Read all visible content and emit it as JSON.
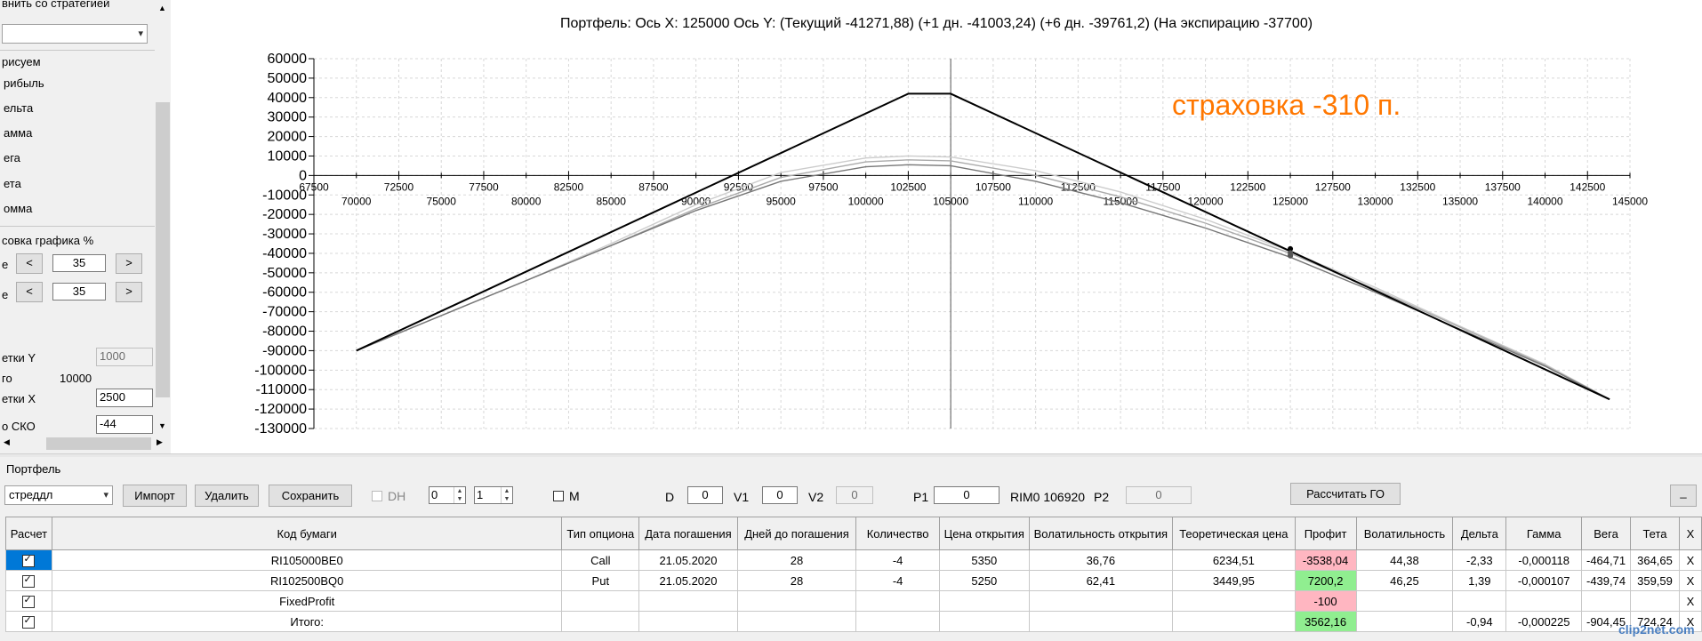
{
  "left_panel": {
    "compare_label": "внить со стратегией",
    "draw_header": "рисуем",
    "draw_items": [
      "рибыль",
      "ельта",
      "амма",
      "ега",
      "ета",
      "омма"
    ],
    "scale_header": "совка графика %",
    "scale_row1": {
      "label": "е",
      "prev": "<",
      "value": "35",
      "next": ">"
    },
    "scale_row2": {
      "label": "е",
      "prev": "<",
      "value": "35",
      "next": ">"
    },
    "gridY_label": "етки Y",
    "gridY_value": "1000",
    "total_label": "го",
    "total_value": "10000",
    "gridX_label": "етки X",
    "gridX_value": "2500",
    "sko_label": "о СКО",
    "sko_value": "-44"
  },
  "chart": {
    "title": "Портфель: Ось X: 125000 Ось Y:  (Текущий -41271,88)  (+1 дн. -41003,24)  (+6 дн. -39761,2)  (На экспирацию -37700)",
    "note": "страховка -310 п.",
    "note_color": "#ff7700"
  },
  "chart_data": {
    "type": "line",
    "title": "Портфель: Ось X: 125000 Ось Y:  (Текущий -41271,88)  (+1 дн. -41003,24)  (+6 дн. -39761,2)  (На экспирацию -37700)",
    "xlim": [
      67500,
      145000
    ],
    "ylim": [
      -130000,
      60000
    ],
    "x_ticks_upper": [
      "67500",
      "72500",
      "77500",
      "82500",
      "87500",
      "92500",
      "97500",
      "102500",
      "107500",
      "112500",
      "117500",
      "122500",
      "127500",
      "132500",
      "137500",
      "142500"
    ],
    "x_ticks_lower": [
      "70000",
      "75000",
      "80000",
      "85000",
      "90000",
      "95000",
      "100000",
      "105000",
      "110000",
      "115000",
      "120000",
      "125000",
      "130000",
      "135000",
      "140000",
      "145000"
    ],
    "y_ticks": [
      "60000",
      "50000",
      "40000",
      "30000",
      "20000",
      "10000",
      "0",
      "-10000",
      "-20000",
      "-30000",
      "-40000",
      "-50000",
      "-60000",
      "-70000",
      "-80000",
      "-90000",
      "-100000",
      "-110000",
      "-120000",
      "-130000"
    ],
    "cursor_x": 105000,
    "series": [
      {
        "color": "#000000",
        "points": [
          [
            70000,
            -90000
          ],
          [
            102500,
            42000
          ],
          [
            105000,
            42000
          ],
          [
            143800,
            -115000
          ]
        ]
      },
      {
        "color": "#777777",
        "points": [
          [
            70000,
            -90000
          ],
          [
            75000,
            -72000
          ],
          [
            80000,
            -54000
          ],
          [
            85000,
            -36000
          ],
          [
            90000,
            -18000
          ],
          [
            95000,
            -3000
          ],
          [
            100000,
            4500
          ],
          [
            102500,
            5500
          ],
          [
            105000,
            5000
          ],
          [
            110000,
            -3000
          ],
          [
            115000,
            -14000
          ],
          [
            120000,
            -27000
          ],
          [
            125000,
            -42000
          ],
          [
            130000,
            -60000
          ],
          [
            135000,
            -79000
          ],
          [
            140000,
            -98000
          ],
          [
            143800,
            -115000
          ]
        ]
      },
      {
        "color": "#aaaaaa",
        "points": [
          [
            70000,
            -90000
          ],
          [
            75000,
            -72000
          ],
          [
            80000,
            -54000
          ],
          [
            85000,
            -36000
          ],
          [
            90000,
            -17000
          ],
          [
            95000,
            -1000
          ],
          [
            100000,
            7000
          ],
          [
            102500,
            8000
          ],
          [
            105000,
            7500
          ],
          [
            110000,
            0
          ],
          [
            115000,
            -11000
          ],
          [
            120000,
            -24500
          ],
          [
            125000,
            -40000
          ],
          [
            130000,
            -58500
          ],
          [
            135000,
            -78000
          ],
          [
            140000,
            -97500
          ],
          [
            143800,
            -115000
          ]
        ]
      },
      {
        "color": "#cccccc",
        "points": [
          [
            70000,
            -90000
          ],
          [
            75000,
            -72000
          ],
          [
            80000,
            -54000
          ],
          [
            85000,
            -35000
          ],
          [
            90000,
            -15000
          ],
          [
            95000,
            1500
          ],
          [
            100000,
            9000
          ],
          [
            102500,
            10000
          ],
          [
            105000,
            9500
          ],
          [
            110000,
            2500
          ],
          [
            115000,
            -8500
          ],
          [
            120000,
            -22500
          ],
          [
            125000,
            -39000
          ],
          [
            130000,
            -57500
          ],
          [
            135000,
            -77500
          ],
          [
            140000,
            -97000
          ],
          [
            143800,
            -115000
          ]
        ]
      }
    ],
    "markers": [
      [
        125000,
        -37700
      ],
      [
        125000,
        -39761.2
      ],
      [
        125000,
        -41003.24
      ],
      [
        125000,
        -41271.88
      ]
    ],
    "grid": true
  },
  "bottom": {
    "portfolio_label": "Портфель",
    "strategy_value": "стреддл",
    "import_btn": "Импорт",
    "delete_btn": "Удалить",
    "save_btn": "Сохранить",
    "dh_label": "DH",
    "spin1_value": "0",
    "spin2_value": "1",
    "m_label": "M",
    "d_label": "D",
    "d_value": "0",
    "v1_label": "V1",
    "v1_value": "0",
    "v2_label": "V2",
    "v2_value": "0",
    "p1_label": "P1",
    "p1_value": "0",
    "rim_label": "RIM0 106920",
    "p2_label": "P2",
    "p2_value": "0",
    "calc_btn": "Рассчитать ГО",
    "minimize_btn": "_"
  },
  "grid": {
    "headers": [
      "Расчет",
      "Код бумаги",
      "Тип опциона",
      "Дата погашения",
      "Дней до погашения",
      "Количество",
      "Цена открытия",
      "Волатильность открытия",
      "Теоретическая цена",
      "Профит",
      "Волатильность",
      "Дельта",
      "Гамма",
      "Вега",
      "Тета",
      "X"
    ],
    "rows": [
      {
        "code": "RI105000BE0",
        "type": "Call",
        "date": "21.05.2020",
        "days": "28",
        "qty": "-4",
        "price": "5350",
        "vol_open": "36,76",
        "theo": "6234,51",
        "profit": "-3538,04",
        "vol": "44,38",
        "delta": "-2,33",
        "gamma": "-0,000118",
        "vega": "-464,71",
        "theta": "364,65",
        "x": "X"
      },
      {
        "code": "RI102500BQ0",
        "type": "Put",
        "date": "21.05.2020",
        "days": "28",
        "qty": "-4",
        "price": "5250",
        "vol_open": "62,41",
        "theo": "3449,95",
        "profit": "7200,2",
        "vol": "46,25",
        "delta": "1,39",
        "gamma": "-0,000107",
        "vega": "-439,74",
        "theta": "359,59",
        "x": "X"
      },
      {
        "code": "FixedProfit",
        "type": "",
        "date": "",
        "days": "",
        "qty": "",
        "price": "",
        "vol_open": "",
        "theo": "",
        "profit": "-100",
        "vol": "",
        "delta": "",
        "gamma": "",
        "vega": "",
        "theta": "",
        "x": "X"
      },
      {
        "code": "Итого:",
        "type": "",
        "date": "",
        "days": "",
        "qty": "",
        "price": "",
        "vol_open": "",
        "theo": "",
        "profit": "3562,16",
        "vol": "",
        "delta": "-0,94",
        "gamma": "-0,000225",
        "vega": "-904,45",
        "theta": "724,24",
        "x": "X"
      }
    ]
  },
  "watermark": "clip2net.com"
}
